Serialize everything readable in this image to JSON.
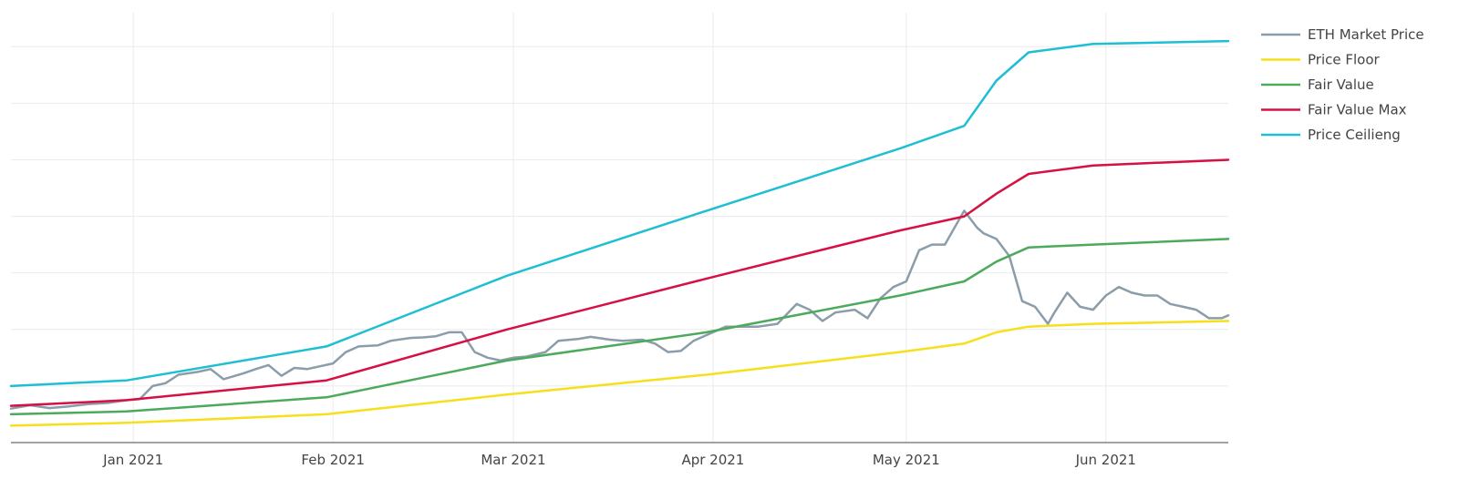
{
  "chart_data": {
    "type": "line",
    "title": "",
    "xlabel": "",
    "ylabel": "",
    "xlim": [
      "2020-12-13",
      "2021-06-20"
    ],
    "ylim": [
      0,
      7.6
    ],
    "grid": true,
    "legend_position": "right",
    "x_tick_labels": [
      {
        "date": "2021-01-01",
        "label": "Jan 2021"
      },
      {
        "date": "2021-02-01",
        "label": "Feb 2021"
      },
      {
        "date": "2021-03-01",
        "label": "Mar 2021"
      },
      {
        "date": "2021-04-01",
        "label": "Apr 2021"
      },
      {
        "date": "2021-05-01",
        "label": "May 2021"
      },
      {
        "date": "2021-06-01",
        "label": "Jun 2021"
      }
    ],
    "y_gridlines": [
      1,
      2,
      3,
      4,
      5,
      6,
      7
    ],
    "series": [
      {
        "name": "ETH Market Price",
        "color": "#8c9daa",
        "points": [
          [
            "2020-12-13",
            0.6
          ],
          [
            "2020-12-16",
            0.66
          ],
          [
            "2020-12-19",
            0.61
          ],
          [
            "2020-12-22",
            0.64
          ],
          [
            "2020-12-25",
            0.68
          ],
          [
            "2020-12-28",
            0.7
          ],
          [
            "2020-12-31",
            0.75
          ],
          [
            "2021-01-02",
            0.77
          ],
          [
            "2021-01-04",
            1.0
          ],
          [
            "2021-01-06",
            1.05
          ],
          [
            "2021-01-08",
            1.2
          ],
          [
            "2021-01-11",
            1.25
          ],
          [
            "2021-01-13",
            1.3
          ],
          [
            "2021-01-15",
            1.12
          ],
          [
            "2021-01-18",
            1.22
          ],
          [
            "2021-01-20",
            1.3
          ],
          [
            "2021-01-22",
            1.37
          ],
          [
            "2021-01-24",
            1.18
          ],
          [
            "2021-01-26",
            1.32
          ],
          [
            "2021-01-28",
            1.3
          ],
          [
            "2021-01-30",
            1.35
          ],
          [
            "2021-02-01",
            1.4
          ],
          [
            "2021-02-03",
            1.6
          ],
          [
            "2021-02-05",
            1.7
          ],
          [
            "2021-02-08",
            1.72
          ],
          [
            "2021-02-10",
            1.8
          ],
          [
            "2021-02-13",
            1.85
          ],
          [
            "2021-02-15",
            1.86
          ],
          [
            "2021-02-17",
            1.88
          ],
          [
            "2021-02-19",
            1.95
          ],
          [
            "2021-02-21",
            1.95
          ],
          [
            "2021-02-23",
            1.6
          ],
          [
            "2021-02-25",
            1.5
          ],
          [
            "2021-02-27",
            1.45
          ],
          [
            "2021-03-01",
            1.5
          ],
          [
            "2021-03-03",
            1.52
          ],
          [
            "2021-03-06",
            1.6
          ],
          [
            "2021-03-08",
            1.8
          ],
          [
            "2021-03-11",
            1.83
          ],
          [
            "2021-03-13",
            1.87
          ],
          [
            "2021-03-16",
            1.82
          ],
          [
            "2021-03-18",
            1.8
          ],
          [
            "2021-03-21",
            1.82
          ],
          [
            "2021-03-23",
            1.75
          ],
          [
            "2021-03-25",
            1.6
          ],
          [
            "2021-03-27",
            1.62
          ],
          [
            "2021-03-29",
            1.8
          ],
          [
            "2021-04-01",
            1.95
          ],
          [
            "2021-04-03",
            2.05
          ],
          [
            "2021-04-06",
            2.05
          ],
          [
            "2021-04-08",
            2.05
          ],
          [
            "2021-04-11",
            2.1
          ],
          [
            "2021-04-14",
            2.45
          ],
          [
            "2021-04-16",
            2.35
          ],
          [
            "2021-04-18",
            2.15
          ],
          [
            "2021-04-20",
            2.3
          ],
          [
            "2021-04-23",
            2.35
          ],
          [
            "2021-04-25",
            2.2
          ],
          [
            "2021-04-27",
            2.55
          ],
          [
            "2021-04-29",
            2.75
          ],
          [
            "2021-05-01",
            2.85
          ],
          [
            "2021-05-03",
            3.4
          ],
          [
            "2021-05-05",
            3.5
          ],
          [
            "2021-05-07",
            3.5
          ],
          [
            "2021-05-09",
            3.9
          ],
          [
            "2021-05-10",
            4.1
          ],
          [
            "2021-05-12",
            3.8
          ],
          [
            "2021-05-13",
            3.7
          ],
          [
            "2021-05-15",
            3.6
          ],
          [
            "2021-05-17",
            3.3
          ],
          [
            "2021-05-19",
            2.5
          ],
          [
            "2021-05-21",
            2.4
          ],
          [
            "2021-05-23",
            2.1
          ],
          [
            "2021-05-24",
            2.3
          ],
          [
            "2021-05-26",
            2.65
          ],
          [
            "2021-05-28",
            2.4
          ],
          [
            "2021-05-30",
            2.35
          ],
          [
            "2021-06-01",
            2.6
          ],
          [
            "2021-06-03",
            2.75
          ],
          [
            "2021-06-05",
            2.65
          ],
          [
            "2021-06-07",
            2.6
          ],
          [
            "2021-06-09",
            2.6
          ],
          [
            "2021-06-11",
            2.45
          ],
          [
            "2021-06-13",
            2.4
          ],
          [
            "2021-06-15",
            2.35
          ],
          [
            "2021-06-17",
            2.2
          ],
          [
            "2021-06-19",
            2.2
          ],
          [
            "2021-06-20",
            2.25
          ]
        ]
      },
      {
        "name": "Price Floor",
        "color": "#f7df1c",
        "points": [
          [
            "2020-12-13",
            0.3
          ],
          [
            "2020-12-31",
            0.35
          ],
          [
            "2021-01-31",
            0.5
          ],
          [
            "2021-02-28",
            0.85
          ],
          [
            "2021-03-31",
            1.2
          ],
          [
            "2021-04-30",
            1.6
          ],
          [
            "2021-05-10",
            1.75
          ],
          [
            "2021-05-15",
            1.95
          ],
          [
            "2021-05-20",
            2.05
          ],
          [
            "2021-05-30",
            2.1
          ],
          [
            "2021-06-20",
            2.15
          ]
        ]
      },
      {
        "name": "Fair Value",
        "color": "#4caa5c",
        "points": [
          [
            "2020-12-13",
            0.5
          ],
          [
            "2020-12-31",
            0.55
          ],
          [
            "2021-01-31",
            0.8
          ],
          [
            "2021-02-28",
            1.45
          ],
          [
            "2021-03-31",
            1.95
          ],
          [
            "2021-04-30",
            2.6
          ],
          [
            "2021-05-10",
            2.85
          ],
          [
            "2021-05-15",
            3.2
          ],
          [
            "2021-05-20",
            3.45
          ],
          [
            "2021-05-30",
            3.5
          ],
          [
            "2021-06-20",
            3.6
          ]
        ]
      },
      {
        "name": "Fair Value Max",
        "color": "#d61043",
        "points": [
          [
            "2020-12-13",
            0.65
          ],
          [
            "2020-12-31",
            0.75
          ],
          [
            "2021-01-31",
            1.1
          ],
          [
            "2021-02-28",
            2.0
          ],
          [
            "2021-03-31",
            2.9
          ],
          [
            "2021-04-30",
            3.75
          ],
          [
            "2021-05-10",
            4.0
          ],
          [
            "2021-05-15",
            4.4
          ],
          [
            "2021-05-20",
            4.75
          ],
          [
            "2021-05-30",
            4.9
          ],
          [
            "2021-06-20",
            5.0
          ]
        ]
      },
      {
        "name": "Price Ceilieng",
        "color": "#1fbfd3",
        "points": [
          [
            "2020-12-13",
            1.0
          ],
          [
            "2020-12-31",
            1.1
          ],
          [
            "2021-01-31",
            1.7
          ],
          [
            "2021-02-28",
            2.95
          ],
          [
            "2021-03-31",
            4.1
          ],
          [
            "2021-04-30",
            5.2
          ],
          [
            "2021-05-10",
            5.6
          ],
          [
            "2021-05-15",
            6.4
          ],
          [
            "2021-05-20",
            6.9
          ],
          [
            "2021-05-30",
            7.05
          ],
          [
            "2021-06-20",
            7.1
          ]
        ]
      }
    ]
  }
}
